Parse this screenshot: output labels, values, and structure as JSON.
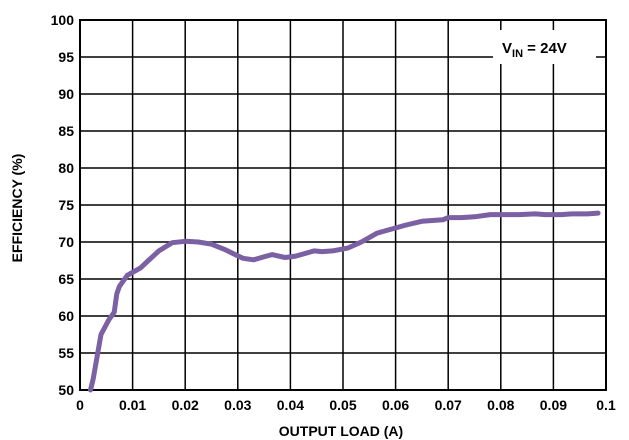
{
  "chart_data": {
    "type": "line",
    "title": "",
    "xlabel": "OUTPUT LOAD (A)",
    "ylabel": "EFFICIENCY (%)",
    "xlim": [
      0,
      0.1
    ],
    "ylim": [
      50,
      100
    ],
    "x_ticks": [
      "0",
      "0.01",
      "0.02",
      "0.03",
      "0.04",
      "0.05",
      "0.06",
      "0.07",
      "0.08",
      "0.09",
      "0.1"
    ],
    "y_ticks": [
      "50",
      "55",
      "60",
      "65",
      "70",
      "75",
      "80",
      "85",
      "90",
      "95",
      "100"
    ],
    "grid": true,
    "annotation": {
      "main": "V",
      "sub": "IN",
      "rest": " = 24V"
    },
    "line_color": "#7b60a3",
    "series": [
      {
        "x": [
          0.002,
          0.0025,
          0.003,
          0.004,
          0.0055,
          0.0065,
          0.007,
          0.0075,
          0.009,
          0.0115,
          0.013,
          0.015,
          0.0175,
          0.02,
          0.0225,
          0.025,
          0.0275,
          0.0295,
          0.031,
          0.033,
          0.0345,
          0.0365,
          0.039,
          0.041,
          0.0445,
          0.046,
          0.048,
          0.051,
          0.0535,
          0.0565,
          0.058,
          0.062,
          0.065,
          0.069,
          0.07,
          0.0725,
          0.075,
          0.078,
          0.0815,
          0.0835,
          0.0865,
          0.0885,
          0.0915,
          0.0935,
          0.0965,
          0.0985
        ],
        "y": [
          50.0,
          51.5,
          53.5,
          57.5,
          59.5,
          60.5,
          63.0,
          64.0,
          65.5,
          66.5,
          67.5,
          68.8,
          69.9,
          70.1,
          70.0,
          69.7,
          69.0,
          68.3,
          67.8,
          67.6,
          67.9,
          68.3,
          67.9,
          68.1,
          68.8,
          68.7,
          68.8,
          69.2,
          70.0,
          71.2,
          71.5,
          72.3,
          72.8,
          73.0,
          73.3,
          73.3,
          73.4,
          73.7,
          73.7,
          73.7,
          73.8,
          73.7,
          73.7,
          73.8,
          73.8,
          73.9
        ]
      }
    ]
  }
}
